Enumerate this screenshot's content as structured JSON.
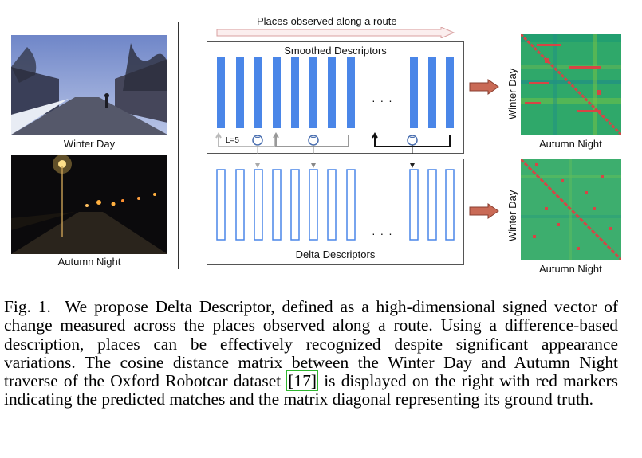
{
  "figure": {
    "photos": [
      {
        "caption": "Winter Day"
      },
      {
        "caption": "Autumn Night"
      }
    ],
    "route_label": "Places observed along a route",
    "smoothed_title": "Smoothed Descriptors",
    "delta_title": "Delta Descriptors",
    "window_label": "L=5",
    "ellipsis": "· · ·",
    "minus_symbol": "−",
    "matrices": [
      {
        "y_label": "Winter Day",
        "x_label": "Autumn Night"
      },
      {
        "y_label": "Winter Day",
        "x_label": "Autumn Night"
      }
    ],
    "colors": {
      "bar_blue": "#4a86e8",
      "matrix_green": "#2fa86a",
      "match_red": "#d64545",
      "arrow_fill": "#c96a56"
    }
  },
  "caption": {
    "label": "Fig. 1.",
    "text_before_ref": "We propose Delta Descriptor, defined as a high-dimensional signed vector of change measured across the places observed along a route. Using a difference-based description, places can be effectively recognized despite significant appearance variations. The cosine distance matrix between the Winter Day and Autumn Night traverse of the Oxford Robotcar dataset",
    "ref": "[17]",
    "text_after_ref": "is displayed on the right with red markers indicating the predicted matches and the matrix diagonal representing its ground truth."
  }
}
